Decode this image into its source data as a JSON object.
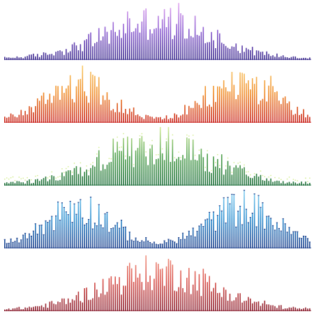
{
  "scene": {
    "background": "#ffffff",
    "bands": [
      {
        "name": "purple-equalizer",
        "shape": "single-hump",
        "style": "bar",
        "bar_count": 150,
        "colors": [
          "#3a2a8c",
          "#8a5bd0",
          "#e6a8f2"
        ]
      },
      {
        "name": "orange-equalizer",
        "shape": "double-hump",
        "style": "bar",
        "bar_count": 150,
        "colors": [
          "#c8201a",
          "#f08a24",
          "#f9d070"
        ]
      },
      {
        "name": "green-equalizer",
        "shape": "single-hump",
        "style": "peak-dot",
        "bar_count": 150,
        "colors": [
          "#1d6e3a",
          "#4ea04d",
          "#d6ee9a"
        ]
      },
      {
        "name": "blue-equalizer",
        "shape": "double-hump",
        "style": "cap",
        "bar_count": 150,
        "colors": [
          "#1c3f8c",
          "#2d8fd0",
          "#8fd6f4"
        ]
      },
      {
        "name": "red-equalizer",
        "shape": "single-hump",
        "style": "bar",
        "bar_count": 150,
        "colors": [
          "#8a1e2e",
          "#d8504a",
          "#f4a08c"
        ]
      }
    ]
  }
}
